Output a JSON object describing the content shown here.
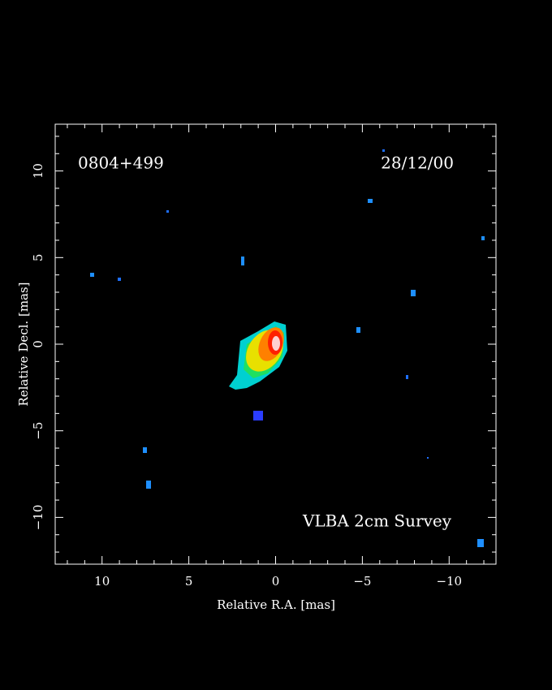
{
  "chart_data": {
    "type": "image",
    "labels": [
      "0804+499",
      "28/12/00",
      "VLBA 2cm Survey"
    ],
    "xlabel": "Relative R.A. [mas]",
    "ylabel": "Relative Decl. [mas]",
    "xlim": [
      12.7,
      -12.7
    ],
    "ylim": [
      -12.7,
      12.7
    ],
    "xticks": [
      10,
      5,
      0,
      {
        "value": -5,
        "label": "−5"
      },
      {
        "value": -10,
        "label": "−10"
      }
    ],
    "yticks": [
      {
        "value": -10,
        "label": "−10"
      },
      {
        "value": -5,
        "label": "−5"
      },
      0,
      5,
      10
    ],
    "xminorticks": [
      12,
      11,
      9,
      8,
      7,
      6,
      4,
      3,
      2,
      1,
      -1,
      -2,
      -3,
      -4,
      -6,
      -7,
      -8,
      -9,
      -11,
      -12
    ],
    "yminorticks": [
      -12,
      -11,
      -9,
      -8,
      -7,
      -6,
      -4,
      -3,
      -2,
      -1,
      1,
      2,
      3,
      4,
      6,
      7,
      8,
      9,
      11,
      12
    ]
  }
}
